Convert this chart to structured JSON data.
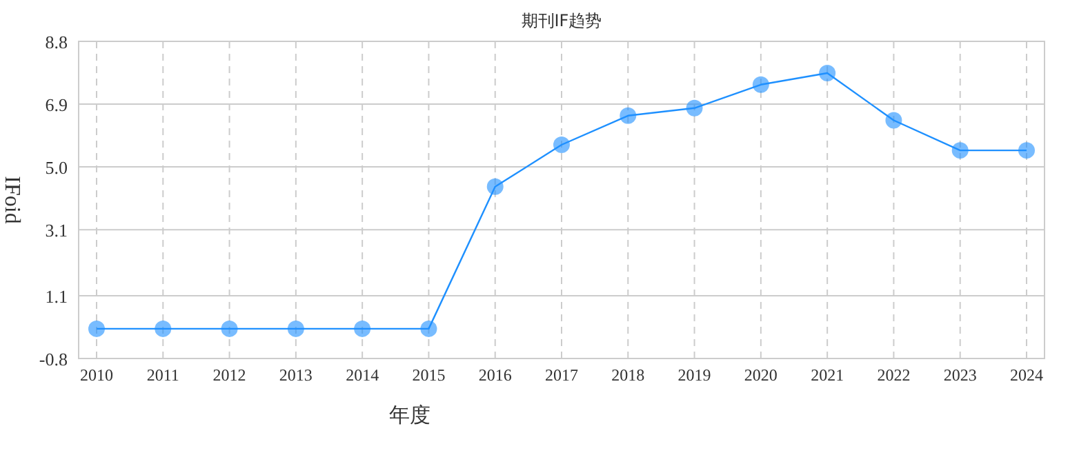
{
  "chart_data": {
    "type": "line",
    "title": "期刊IF趋势",
    "xlabel": "年度",
    "ylabel": "IFoid",
    "categories": [
      "2010",
      "2011",
      "2012",
      "2013",
      "2014",
      "2015",
      "2016",
      "2017",
      "2018",
      "2019",
      "2020",
      "2021",
      "2022",
      "2023",
      "2024"
    ],
    "series": [
      {
        "color": "#1e90ff",
        "values": [
          0.1,
          0.1,
          0.1,
          0.1,
          0.1,
          0.1,
          4.4,
          5.67,
          6.55,
          6.78,
          7.49,
          7.84,
          6.41,
          5.5,
          5.5
        ]
      }
    ],
    "ylim": [
      -0.8,
      8.8
    ],
    "yticks": [
      -0.8,
      1.1,
      3.1,
      {
        "value": 5.0,
        "label": "5.0"
      },
      6.9,
      8.8
    ],
    "grid": true,
    "marker": "circle",
    "line_style": "solid"
  }
}
